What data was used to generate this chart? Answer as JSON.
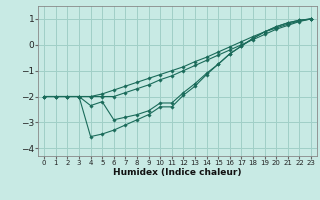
{
  "xlabel": "Humidex (Indice chaleur)",
  "bg_color": "#c8eae4",
  "grid_color": "#a0cfc7",
  "line_color": "#1a6b5a",
  "xlim": [
    -0.5,
    23.5
  ],
  "ylim": [
    -4.3,
    1.5
  ],
  "xticks": [
    0,
    1,
    2,
    3,
    4,
    5,
    6,
    7,
    8,
    9,
    10,
    11,
    12,
    13,
    14,
    15,
    16,
    17,
    18,
    19,
    20,
    21,
    22,
    23
  ],
  "yticks": [
    -4,
    -3,
    -2,
    -1,
    0,
    1
  ],
  "line1_x": [
    0,
    1,
    2,
    3,
    4,
    5,
    6,
    7,
    8,
    9,
    10,
    11,
    12,
    13,
    14,
    15,
    16,
    17,
    18,
    19,
    20,
    21,
    22,
    23
  ],
  "line1_y": [
    -2.0,
    -2.0,
    -2.0,
    -2.0,
    -2.35,
    -2.2,
    -2.9,
    -2.8,
    -2.7,
    -2.55,
    -2.25,
    -2.25,
    -1.85,
    -1.5,
    -1.1,
    -0.75,
    -0.35,
    -0.05,
    0.25,
    0.5,
    0.7,
    0.85,
    0.95,
    1.0
  ],
  "line2_x": [
    3,
    4,
    5,
    6,
    7,
    8,
    9,
    10,
    11,
    12,
    13,
    14,
    15,
    16,
    17,
    18,
    19,
    20,
    21,
    22,
    23
  ],
  "line2_y": [
    -2.0,
    -3.55,
    -3.45,
    -3.3,
    -3.1,
    -2.9,
    -2.7,
    -2.4,
    -2.4,
    -1.95,
    -1.6,
    -1.15,
    -0.75,
    -0.35,
    -0.05,
    0.25,
    0.5,
    0.7,
    0.85,
    0.95,
    1.0
  ],
  "line3_x": [
    0,
    1,
    2,
    3,
    4,
    5,
    6,
    7,
    8,
    9,
    10,
    11,
    12,
    13,
    14,
    15,
    16,
    17,
    18,
    19,
    20,
    21,
    22,
    23
  ],
  "line3_y": [
    -2.0,
    -2.0,
    -2.0,
    -2.0,
    -2.0,
    -2.0,
    -2.0,
    -1.85,
    -1.7,
    -1.55,
    -1.35,
    -1.2,
    -1.0,
    -0.8,
    -0.6,
    -0.4,
    -0.2,
    0.0,
    0.2,
    0.4,
    0.6,
    0.75,
    0.9,
    1.0
  ],
  "line4_x": [
    0,
    1,
    2,
    3,
    4,
    5,
    6,
    7,
    8,
    9,
    10,
    11,
    12,
    13,
    14,
    15,
    16,
    17,
    18,
    19,
    20,
    21,
    22,
    23
  ],
  "line4_y": [
    -2.0,
    -2.0,
    -2.0,
    -2.0,
    -2.0,
    -1.9,
    -1.75,
    -1.6,
    -1.45,
    -1.3,
    -1.15,
    -1.0,
    -0.85,
    -0.65,
    -0.48,
    -0.28,
    -0.08,
    0.12,
    0.32,
    0.5,
    0.65,
    0.8,
    0.92,
    1.0
  ]
}
